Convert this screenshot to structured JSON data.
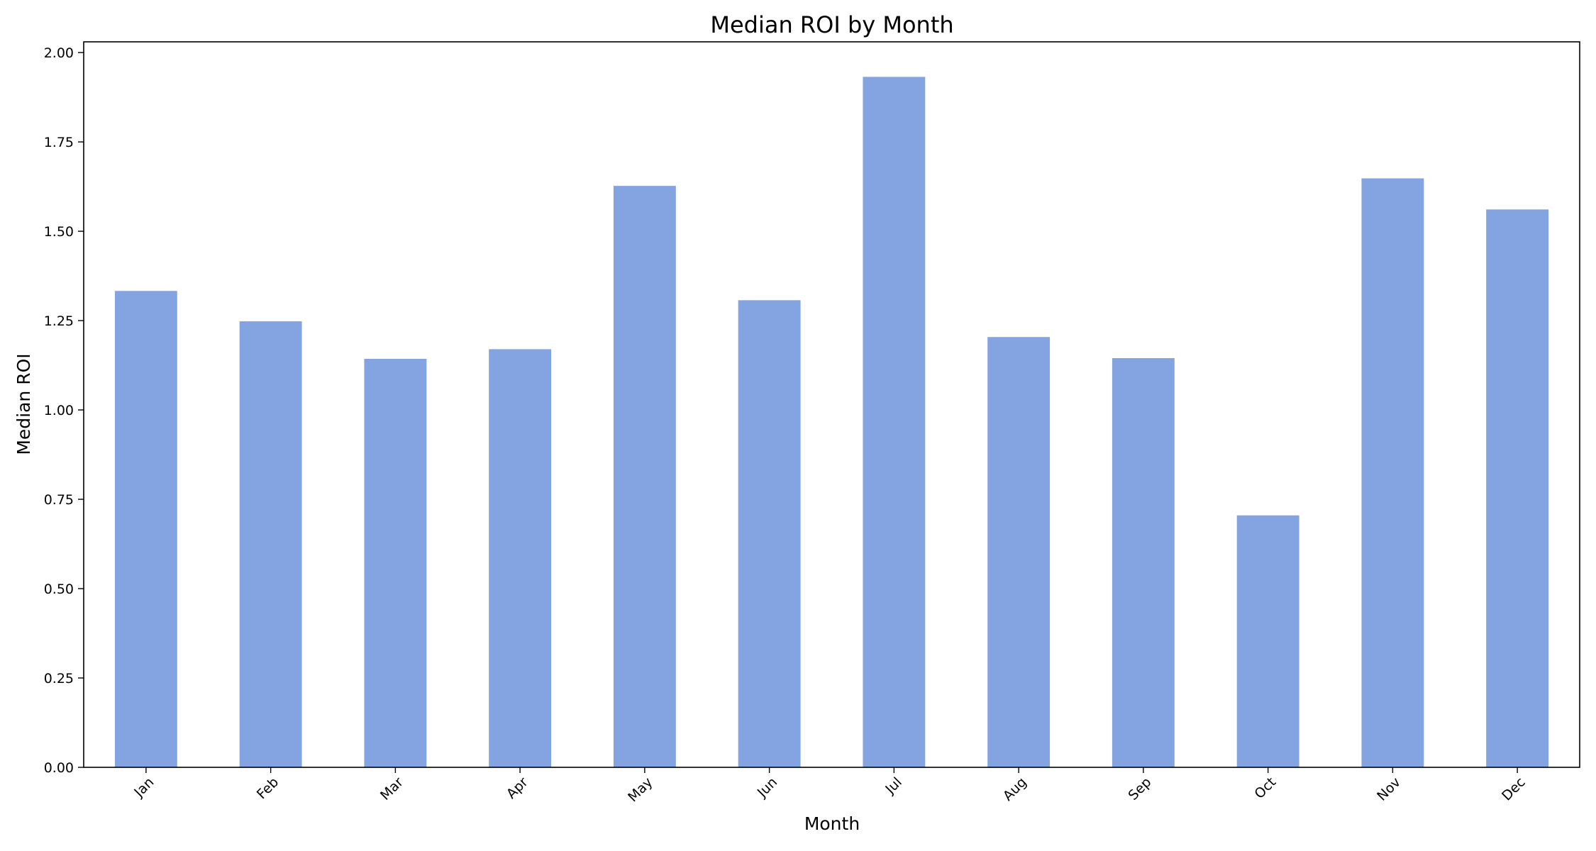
{
  "chart_data": {
    "type": "bar",
    "title": "Median ROI by Month",
    "xlabel": "Month",
    "ylabel": "Median ROI",
    "categories": [
      "Jan",
      "Feb",
      "Mar",
      "Apr",
      "May",
      "Jun",
      "Jul",
      "Aug",
      "Sep",
      "Oct",
      "Nov",
      "Dec"
    ],
    "values": [
      1.333,
      1.248,
      1.143,
      1.17,
      1.627,
      1.307,
      1.932,
      1.204,
      1.145,
      0.705,
      1.648,
      1.561
    ],
    "ylim": [
      0,
      2.03
    ],
    "yticks": [
      "0.00",
      "0.25",
      "0.50",
      "0.75",
      "1.00",
      "1.25",
      "1.50",
      "1.75",
      "2.00"
    ],
    "bar_color": "#6f93dc",
    "grid": false,
    "legend": "none"
  }
}
